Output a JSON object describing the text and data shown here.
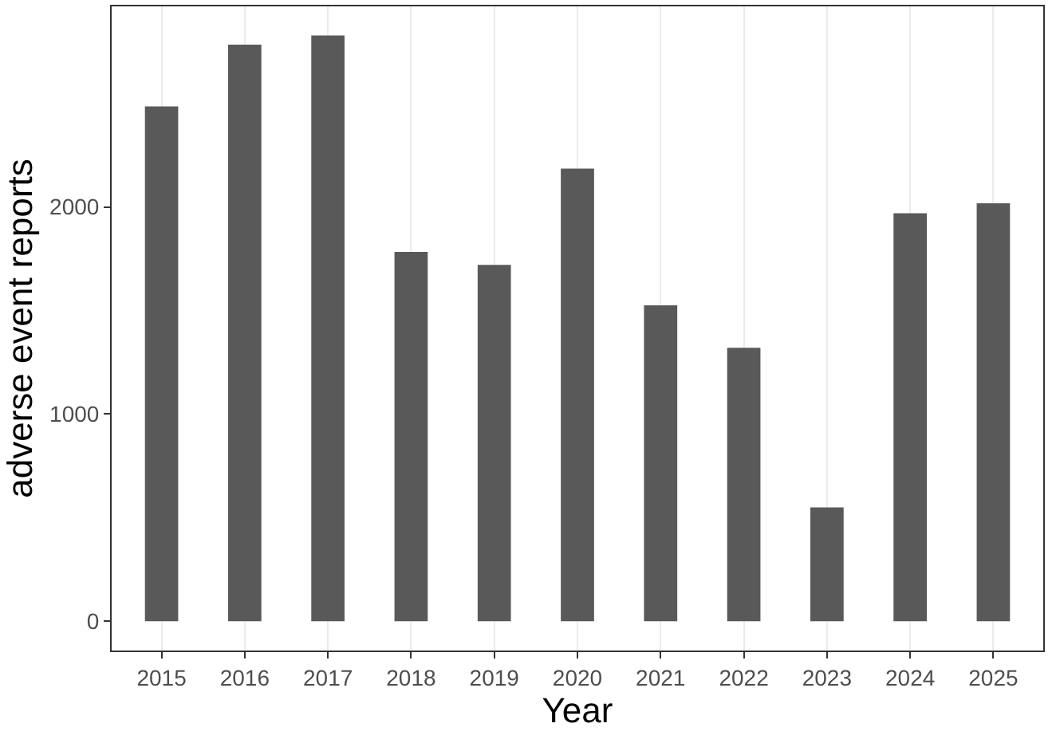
{
  "chart_data": {
    "type": "bar",
    "xlabel": "Year",
    "ylabel": "adverse event reports",
    "categories": [
      "2015",
      "2016",
      "2017",
      "2018",
      "2019",
      "2020",
      "2021",
      "2022",
      "2023",
      "2024",
      "2025"
    ],
    "values": [
      2485,
      2783,
      2828,
      1783,
      1720,
      2185,
      1525,
      1320,
      550,
      1970,
      2018
    ],
    "color": "#595959",
    "ylim": [
      -141,
      2968
    ],
    "yticks": [
      0,
      1000,
      2000
    ],
    "grid": "x",
    "legend": false
  }
}
